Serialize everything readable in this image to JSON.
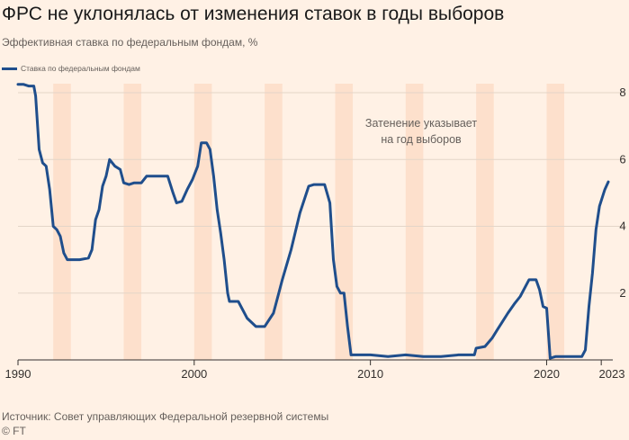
{
  "header": {
    "title": "ФРС не уклонялась от изменения ставок в годы выборов",
    "subtitle": "Эффективная ставка по федеральным фондам, %"
  },
  "legend": {
    "label": "Ставка по федеральным фондам"
  },
  "annotation": {
    "line1": "Затенение указывает",
    "line2": "на год выборов"
  },
  "footer": {
    "source": "Источник: Совет управляющих Федеральной резервной системы",
    "copyright": "© FT"
  },
  "colors": {
    "line": "#1f4e8c",
    "shade": "#fde0cc",
    "grid": "#e3d5c8",
    "background": "#fff1e5"
  },
  "chart_data": {
    "type": "line",
    "title": "ФРС не уклонялась от изменения ставок в годы выборов",
    "ylabel": "Эффективная ставка по федеральным фондам, %",
    "xlabel": "",
    "xlim": [
      1990,
      2023.5
    ],
    "ylim": [
      0,
      8.5
    ],
    "grid": true,
    "y_ticks": [
      2,
      4,
      6,
      8
    ],
    "x_ticks": [
      1990,
      2000,
      2010,
      2020,
      2023
    ],
    "election_years": [
      1992,
      1996,
      2000,
      2004,
      2008,
      2012,
      2016,
      2020
    ],
    "series": [
      {
        "name": "Ставка по федеральным фондам",
        "x": [
          1990.0,
          1990.3,
          1990.6,
          1990.9,
          1991.0,
          1991.2,
          1991.4,
          1991.6,
          1991.8,
          1992.0,
          1992.2,
          1992.4,
          1992.6,
          1992.8,
          1993.0,
          1993.5,
          1994.0,
          1994.2,
          1994.4,
          1994.6,
          1994.8,
          1995.0,
          1995.2,
          1995.5,
          1995.8,
          1996.0,
          1996.3,
          1996.6,
          1997.0,
          1997.3,
          1997.6,
          1998.0,
          1998.5,
          1998.8,
          1999.0,
          1999.3,
          1999.6,
          1999.9,
          2000.2,
          2000.4,
          2000.7,
          2000.9,
          2001.1,
          2001.3,
          2001.5,
          2001.7,
          2001.9,
          2002.0,
          2002.5,
          2003.0,
          2003.5,
          2004.0,
          2004.5,
          2004.8,
          2005.0,
          2005.5,
          2006.0,
          2006.5,
          2006.8,
          2007.0,
          2007.4,
          2007.7,
          2007.9,
          2008.1,
          2008.3,
          2008.5,
          2008.7,
          2008.9,
          2009.0,
          2010.0,
          2011.0,
          2012.0,
          2013.0,
          2014.0,
          2015.0,
          2015.9,
          2016.0,
          2016.5,
          2016.9,
          2017.2,
          2017.5,
          2017.8,
          2018.2,
          2018.5,
          2018.8,
          2019.0,
          2019.4,
          2019.6,
          2019.8,
          2020.0,
          2020.2,
          2020.5,
          2021.0,
          2021.5,
          2022.0,
          2022.2,
          2022.4,
          2022.6,
          2022.8,
          2023.0,
          2023.3,
          2023.5
        ],
        "values": [
          8.25,
          8.25,
          8.2,
          8.2,
          7.9,
          6.3,
          5.9,
          5.8,
          5.1,
          4.0,
          3.9,
          3.7,
          3.2,
          3.0,
          3.0,
          3.0,
          3.05,
          3.3,
          4.2,
          4.5,
          5.2,
          5.5,
          6.0,
          5.8,
          5.7,
          5.3,
          5.25,
          5.3,
          5.3,
          5.5,
          5.5,
          5.5,
          5.5,
          5.0,
          4.7,
          4.75,
          5.1,
          5.4,
          5.8,
          6.5,
          6.5,
          6.3,
          5.5,
          4.5,
          3.8,
          3.0,
          2.0,
          1.75,
          1.75,
          1.25,
          1.0,
          1.0,
          1.4,
          2.0,
          2.4,
          3.3,
          4.4,
          5.2,
          5.25,
          5.25,
          5.25,
          4.7,
          3.0,
          2.2,
          2.0,
          2.0,
          1.0,
          0.15,
          0.15,
          0.15,
          0.1,
          0.15,
          0.1,
          0.1,
          0.15,
          0.15,
          0.35,
          0.4,
          0.65,
          0.9,
          1.15,
          1.4,
          1.7,
          1.9,
          2.2,
          2.4,
          2.4,
          2.1,
          1.6,
          1.55,
          0.05,
          0.1,
          0.1,
          0.1,
          0.1,
          0.3,
          1.6,
          2.6,
          3.9,
          4.6,
          5.1,
          5.33
        ]
      }
    ]
  }
}
